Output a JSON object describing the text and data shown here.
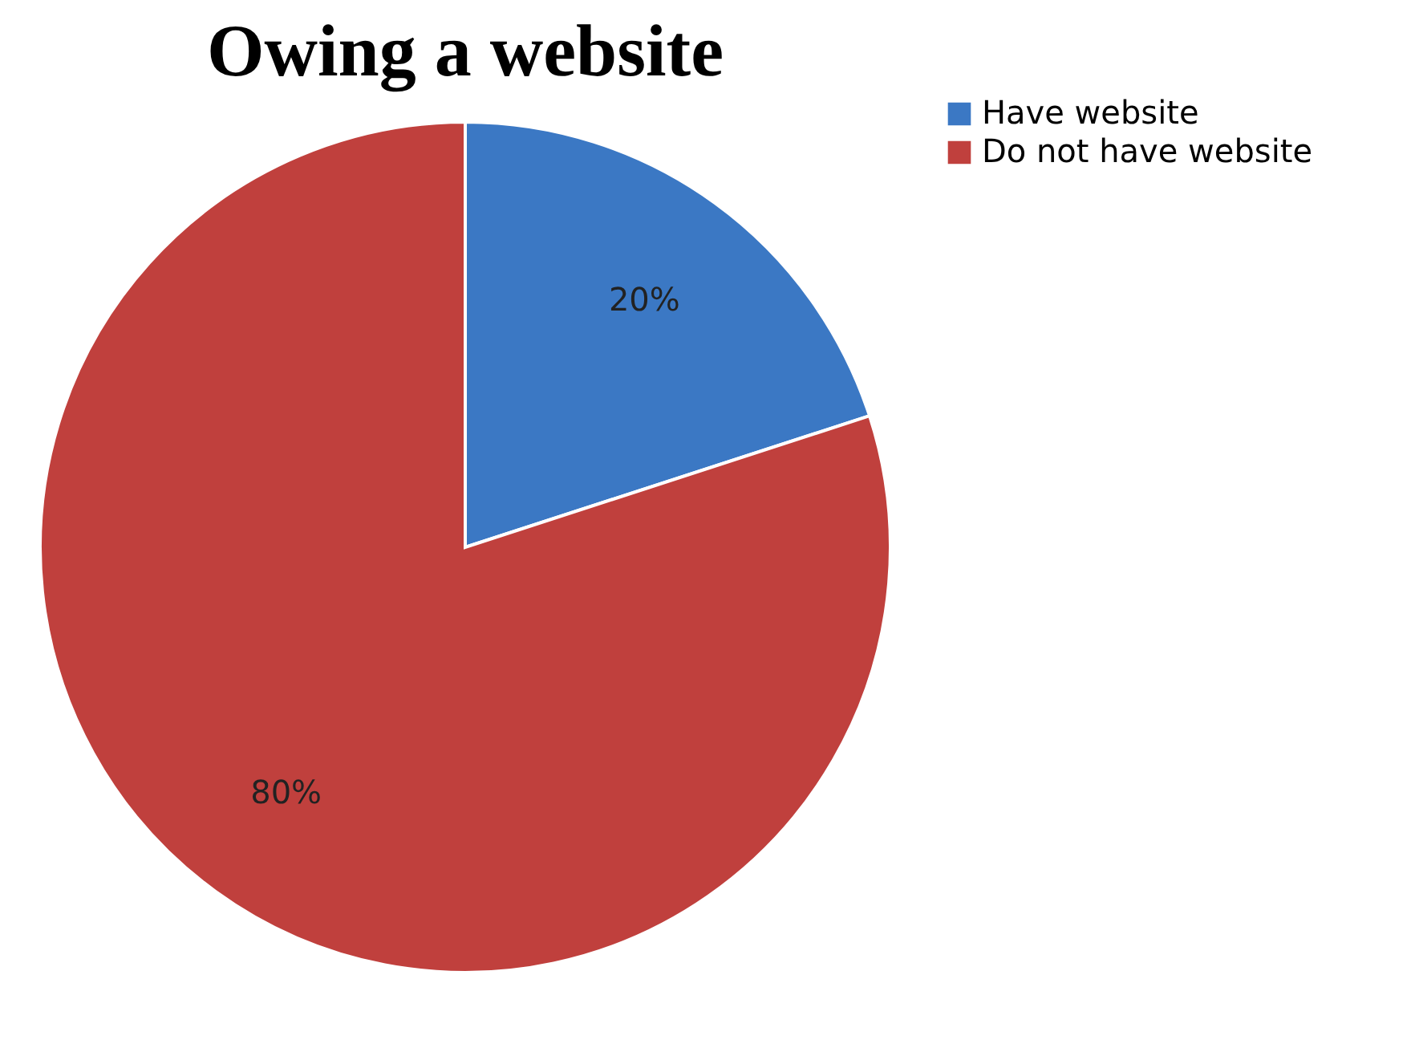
{
  "chart_data": {
    "type": "pie",
    "title": "Owing a website",
    "categories": [
      "Have website",
      "Do not have website"
    ],
    "values": [
      20,
      80
    ],
    "colors": [
      "#3b78c4",
      "#c0403d"
    ],
    "value_labels": [
      "20%",
      "80%"
    ],
    "legend": "right"
  }
}
